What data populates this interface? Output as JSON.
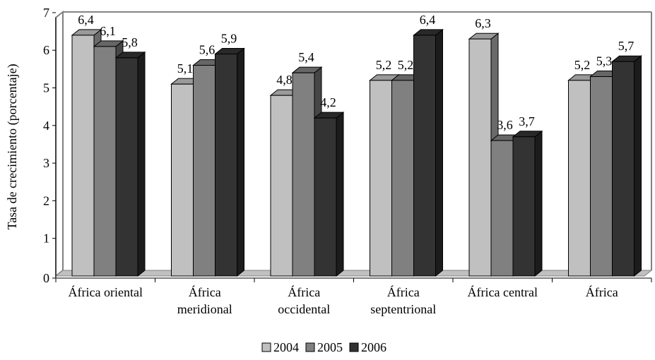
{
  "chart_data": {
    "type": "bar",
    "ylabel": "Tasa de crecimiento (porcentaje)",
    "ylim": [
      0,
      7
    ],
    "yticks": [
      "0",
      "1",
      "2",
      "3",
      "4",
      "5",
      "6",
      "7"
    ],
    "categories": [
      [
        "África oriental"
      ],
      [
        "África",
        "meridional"
      ],
      [
        "África",
        "occidental"
      ],
      [
        "África",
        "septentrional"
      ],
      [
        "África central"
      ],
      [
        "África"
      ]
    ],
    "series": [
      {
        "name": "2004",
        "values": [
          6.4,
          5.1,
          4.8,
          5.2,
          6.3,
          5.2
        ],
        "labels": [
          "6,4",
          "5,1",
          "4,8",
          "5,2",
          "6,3",
          "5,2"
        ],
        "color": "#c0c0c0"
      },
      {
        "name": "2005",
        "values": [
          6.1,
          5.6,
          5.4,
          5.2,
          3.6,
          5.3
        ],
        "labels": [
          "6,1",
          "5,6",
          "5,4",
          "5,2",
          "3,6",
          "5,3"
        ],
        "color": "#808080"
      },
      {
        "name": "2006",
        "values": [
          5.8,
          5.9,
          4.2,
          6.4,
          3.7,
          5.7
        ],
        "labels": [
          "5,8",
          "5,9",
          "4,2",
          "6,4",
          "3,7",
          "5,7"
        ],
        "color": "#333333"
      }
    ],
    "legend_position": "bottom",
    "grid": false
  }
}
